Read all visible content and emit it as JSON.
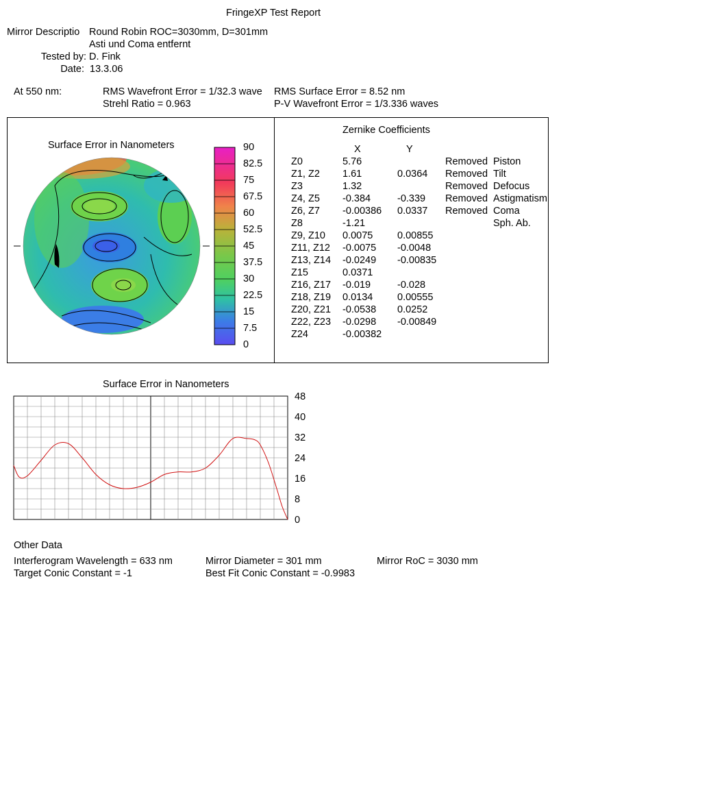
{
  "report": {
    "title": "FringeXP Test Report",
    "mirror_description_label": "Mirror Descriptio",
    "mirror_description": "Round Robin ROC=3030mm, D=301mm",
    "mirror_description_line2": "Asti und Coma entfernt",
    "tested_by_label": "Tested by:",
    "tested_by": "D. Fink",
    "date_label": "Date:",
    "date": "13.3.06"
  },
  "summary": {
    "wavelength_label": "At 550 nm:",
    "rms_wavefront": "RMS Wavefront Error = 1/32.3 wave",
    "rms_surface": "RMS Surface Error = 8.52 nm",
    "strehl": "Strehl Ratio = 0.963",
    "pv_wavefront": "P-V Wavefront Error = 1/3.336 waves"
  },
  "surface_map": {
    "title": "Surface Error in Nanometers",
    "colorbar_labels": [
      "90",
      "82.5",
      "75",
      "67.5",
      "60",
      "52.5",
      "45",
      "37.5",
      "30",
      "22.5",
      "15",
      "7.5",
      "0"
    ],
    "colors": {
      "magenta": "#e81fc6",
      "red": "#f23a5a",
      "orange": "#f0834a",
      "olive": "#b8b33a",
      "green": "#5ccf52",
      "teal": "#2fc1a4",
      "blue": "#3b7de6",
      "violet": "#5a4df0"
    }
  },
  "zernike": {
    "title": "Zernike Coefficients",
    "col_x": "X",
    "col_y": "Y",
    "rows": [
      {
        "term": "Z0",
        "x": "5.76",
        "y": "",
        "status": "Removed",
        "name": "Piston"
      },
      {
        "term": "Z1, Z2",
        "x": "1.61",
        "y": "0.0364",
        "status": "Removed",
        "name": "Tilt"
      },
      {
        "term": "Z3",
        "x": "1.32",
        "y": "",
        "status": "Removed",
        "name": "Defocus"
      },
      {
        "term": "Z4, Z5",
        "x": "-0.384",
        "y": "-0.339",
        "status": "Removed",
        "name": "Astigmatism"
      },
      {
        "term": "Z6, Z7",
        "x": "-0.00386",
        "y": "0.0337",
        "status": "Removed",
        "name": "Coma"
      },
      {
        "term": "Z8",
        "x": "-1.21",
        "y": "",
        "status": "",
        "name": "Sph. Ab."
      },
      {
        "term": "Z9, Z10",
        "x": "0.0075",
        "y": "0.00855",
        "status": "",
        "name": ""
      },
      {
        "term": "Z11, Z12",
        "x": "-0.0075",
        "y": "-0.0048",
        "status": "",
        "name": ""
      },
      {
        "term": "Z13, Z14",
        "x": "-0.0249",
        "y": "-0.00835",
        "status": "",
        "name": ""
      },
      {
        "term": "Z15",
        "x": "0.0371",
        "y": "",
        "status": "",
        "name": ""
      },
      {
        "term": "Z16, Z17",
        "x": "-0.019",
        "y": "-0.028",
        "status": "",
        "name": ""
      },
      {
        "term": "Z18, Z19",
        "x": "0.0134",
        "y": "0.00555",
        "status": "",
        "name": ""
      },
      {
        "term": "Z20, Z21",
        "x": "-0.0538",
        "y": "0.0252",
        "status": "",
        "name": ""
      },
      {
        "term": "Z22, Z23",
        "x": "-0.0298",
        "y": "-0.00849",
        "status": "",
        "name": ""
      },
      {
        "term": "Z24",
        "x": "-0.00382",
        "y": "",
        "status": "",
        "name": ""
      }
    ]
  },
  "chart_data": {
    "type": "line",
    "title": "Surface Error in Nanometers",
    "xlabel": "",
    "ylabel": "",
    "ylim": [
      0,
      48
    ],
    "yticks": [
      "48",
      "40",
      "32",
      "24",
      "16",
      "8",
      "0"
    ],
    "grid": true,
    "line_color": "#d01010",
    "x": [
      0,
      0.02,
      0.05,
      0.1,
      0.15,
      0.2,
      0.25,
      0.3,
      0.35,
      0.4,
      0.45,
      0.5,
      0.55,
      0.6,
      0.65,
      0.7,
      0.75,
      0.8,
      0.85,
      0.88,
      0.9,
      0.93,
      0.96,
      0.98,
      1.0
    ],
    "values": [
      21,
      16.5,
      17,
      23,
      29,
      29.5,
      24,
      17.5,
      13.5,
      12,
      12.5,
      14.5,
      17.5,
      18.5,
      18.5,
      20,
      25,
      31.5,
      31.5,
      31,
      29,
      22,
      12,
      5,
      0
    ]
  },
  "other_data": {
    "title": "Other Data",
    "interferogram_wavelength": "Interferogram Wavelength = 633 nm",
    "mirror_diameter": "Mirror Diameter = 301 mm",
    "mirror_roc": "Mirror RoC = 3030 mm",
    "target_conic": "Target Conic Constant = -1",
    "best_fit_conic": "Best Fit Conic Constant = -0.9983"
  }
}
